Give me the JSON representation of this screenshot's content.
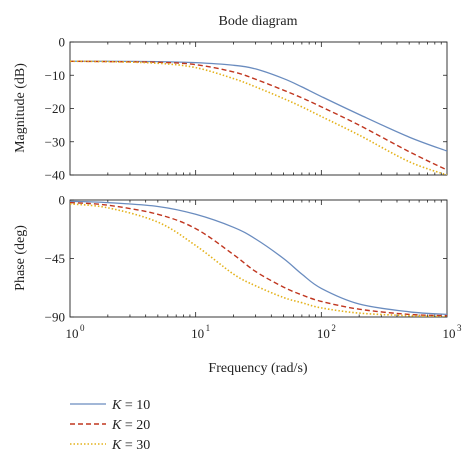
{
  "chart_data": {
    "type": "line",
    "title": "Bode diagram",
    "xlabel": "Frequency (rad/s)",
    "xscale": "log",
    "xlim": [
      1,
      1000
    ],
    "x_ticks": [
      {
        "base": "10",
        "exp": "0"
      },
      {
        "base": "10",
        "exp": "1"
      },
      {
        "base": "10",
        "exp": "2"
      },
      {
        "base": "10",
        "exp": "3"
      }
    ],
    "legend": "bottom-left",
    "colors": {
      "K10": "#6a8cbf",
      "K20": "#c0361f",
      "K30": "#e4b21b"
    },
    "subplots": [
      {
        "name": "magnitude",
        "ylabel": "Magnitude (dB)",
        "ylim": [
          -40,
          0
        ],
        "yticks": [
          "0",
          "−10",
          "−20",
          "−30",
          "−40"
        ],
        "ytick_values": [
          0,
          -10,
          -20,
          -30,
          -40
        ],
        "series": [
          {
            "legend": "K = 10",
            "x": [
              1,
              2,
              5,
              10,
              20,
              30,
              50,
              70,
              100,
              200,
              500,
              1000
            ],
            "y": [
              -5.8,
              -5.8,
              -5.9,
              -6.2,
              -7.0,
              -8.1,
              -11.0,
              -13.5,
              -16.4,
              -21.8,
              -28.6,
              -32.8
            ]
          },
          {
            "legend": "K = 20",
            "x": [
              1,
              2,
              5,
              10,
              20,
              30,
              50,
              70,
              100,
              200,
              500,
              1000
            ],
            "y": [
              -5.8,
              -5.9,
              -6.1,
              -6.8,
              -9.0,
              -11.2,
              -14.5,
              -16.8,
              -19.5,
              -25.0,
              -33.0,
              -38.5
            ]
          },
          {
            "legend": "K = 30",
            "x": [
              1,
              2,
              5,
              10,
              20,
              30,
              50,
              70,
              100,
              200,
              500,
              1000
            ],
            "y": [
              -5.8,
              -5.9,
              -6.4,
              -7.7,
              -11.0,
              -13.5,
              -17.0,
              -19.5,
              -22.4,
              -28.0,
              -36.0,
              -40.0
            ]
          }
        ]
      },
      {
        "name": "phase",
        "ylabel": "Phase (deg)",
        "ylim": [
          -90,
          0
        ],
        "yticks": [
          "0",
          "−45",
          "−90"
        ],
        "ytick_values": [
          0,
          -45,
          -90
        ],
        "series": [
          {
            "legend": "K = 10",
            "x": [
              1,
              2,
              5,
              10,
              20,
              30,
              50,
              70,
              100,
              200,
              500,
              1000
            ],
            "y": [
              -1,
              -2,
              -5,
              -11,
              -21,
              -30,
              -45,
              -57,
              -68,
              -80,
              -86,
              -88
            ]
          },
          {
            "legend": "K = 20",
            "x": [
              1,
              2,
              5,
              10,
              20,
              30,
              50,
              70,
              100,
              200,
              500,
              1000
            ],
            "y": [
              -2,
              -4,
              -11,
              -22,
              -42,
              -55,
              -67,
              -73,
              -78,
              -84,
              -88,
              -89
            ]
          },
          {
            "legend": "K = 30",
            "x": [
              1,
              2,
              5,
              10,
              20,
              30,
              50,
              70,
              100,
              200,
              500,
              1000
            ],
            "y": [
              -3,
              -6,
              -17,
              -35,
              -57,
              -66,
              -75,
              -79,
              -83,
              -87,
              -89,
              -90
            ]
          }
        ]
      }
    ],
    "legend_entries": [
      {
        "k": "K",
        "rest": " = 10"
      },
      {
        "k": "K",
        "rest": " = 20"
      },
      {
        "k": "K",
        "rest": " = 30"
      }
    ]
  }
}
